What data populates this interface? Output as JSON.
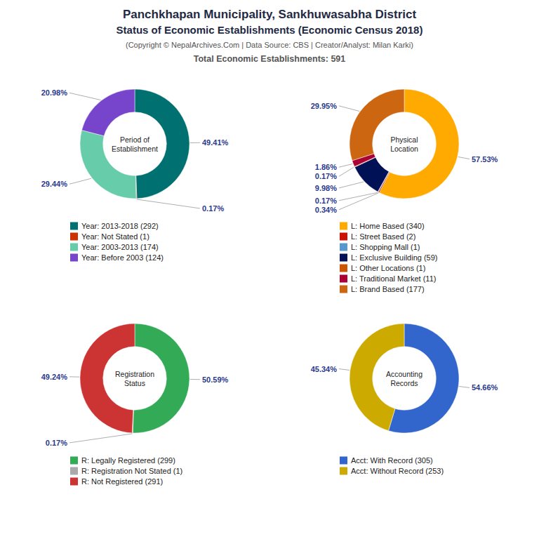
{
  "title": "Panchkhapan Municipality, Sankhuwasabha District",
  "subtitle": "Status of Economic Establishments (Economic Census 2018)",
  "annotations": [
    "(Copyright © NepalArchives.Com | Data Source: CBS | Creator/Analyst: Milan Karki)",
    "Total Economic Establishments: 591"
  ],
  "chart_data": [
    {
      "type": "pie",
      "title": "Period of\nEstablishment",
      "categories": [
        "Year: 2013-2018 (292)",
        "Year: Not Stated (1)",
        "Year: 2003-2013 (174)",
        "Year: Before 2003 (124)"
      ],
      "values": [
        49.41,
        0.17,
        29.44,
        20.98
      ],
      "value_labels": [
        "49.41%",
        "0.17%",
        "29.44%",
        "20.98%"
      ],
      "colors": [
        "#007070",
        "#cc3300",
        "#66ccaa",
        "#7744cc"
      ],
      "data_labels": true,
      "legend": "bottom"
    },
    {
      "type": "pie",
      "title": "Physical\nLocation",
      "categories": [
        "L: Home Based (340)",
        "L: Street Based (2)",
        "L: Shopping Mall (1)",
        "L: Exclusive Building (59)",
        "L: Other Locations (1)",
        "L: Traditional Market (11)",
        "L: Brand Based (177)"
      ],
      "values": [
        57.53,
        0.34,
        0.17,
        9.98,
        0.17,
        1.86,
        29.95
      ],
      "value_labels": [
        "57.53%",
        "0.34%",
        "0.17%",
        "9.98%",
        "0.17%",
        "1.86%",
        "29.95%"
      ],
      "colors": [
        "#ffaa00",
        "#cc1100",
        "#5599cc",
        "#001155",
        "#cc5500",
        "#aa0033",
        "#cc6611"
      ],
      "data_labels": true,
      "legend": "bottom"
    },
    {
      "type": "pie",
      "title": "Registration\nStatus",
      "categories": [
        "R: Legally Registered (299)",
        "R: Registration Not Stated (1)",
        "R: Not Registered (291)"
      ],
      "values": [
        50.59,
        0.17,
        49.24
      ],
      "value_labels": [
        "50.59%",
        "0.17%",
        "49.24%"
      ],
      "colors": [
        "#33aa55",
        "#aaaaaa",
        "#cc3333"
      ],
      "data_labels": true,
      "legend": "bottom"
    },
    {
      "type": "pie",
      "title": "Accounting\nRecords",
      "categories": [
        "Acct: With Record (305)",
        "Acct: Without Record (253)"
      ],
      "values": [
        54.66,
        45.34
      ],
      "value_labels": [
        "54.66%",
        "45.34%"
      ],
      "colors": [
        "#3366cc",
        "#ccaa00"
      ],
      "data_labels": true,
      "legend": "bottom"
    }
  ]
}
